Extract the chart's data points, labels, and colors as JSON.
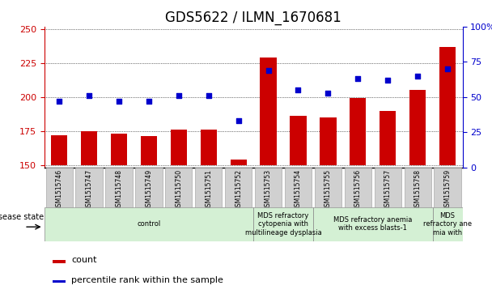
{
  "title": "GDS5622 / ILMN_1670681",
  "samples": [
    "GSM1515746",
    "GSM1515747",
    "GSM1515748",
    "GSM1515749",
    "GSM1515750",
    "GSM1515751",
    "GSM1515752",
    "GSM1515753",
    "GSM1515754",
    "GSM1515755",
    "GSM1515756",
    "GSM1515757",
    "GSM1515758",
    "GSM1515759"
  ],
  "counts": [
    172,
    175,
    173,
    171,
    176,
    176,
    154,
    229,
    186,
    185,
    199,
    190,
    205,
    237
  ],
  "percentile_ranks": [
    47,
    51,
    47,
    47,
    51,
    51,
    33,
    69,
    55,
    53,
    63,
    62,
    65,
    70
  ],
  "ylim_left": [
    148,
    252
  ],
  "ylim_right": [
    0,
    100
  ],
  "yticks_left": [
    150,
    175,
    200,
    225,
    250
  ],
  "yticks_right": [
    0,
    25,
    50,
    75,
    100
  ],
  "bar_color": "#cc0000",
  "scatter_color": "#0000cc",
  "bar_width": 0.55,
  "background_color": "#ffffff",
  "title_fontsize": 12,
  "axis_color_left": "#cc0000",
  "axis_color_right": "#0000cc",
  "group_boundaries": [
    {
      "xstart": -0.5,
      "xend": 6.5,
      "label": "control"
    },
    {
      "xstart": 6.5,
      "xend": 8.5,
      "label": "MDS refractory\ncytopenia with\nmultilineage dysplasia"
    },
    {
      "xstart": 8.5,
      "xend": 12.5,
      "label": "MDS refractory anemia\nwith excess blasts-1"
    },
    {
      "xstart": 12.5,
      "xend": 13.5,
      "label": "MDS\nrefractory ane\nmia with"
    }
  ],
  "group_color": "#d4f0d4",
  "gray_box_color": "#d0d0d0",
  "gray_box_edge": "#aaaaaa",
  "disease_state_label": "disease state",
  "legend_count_label": "count",
  "legend_percentile_label": "percentile rank within the sample"
}
